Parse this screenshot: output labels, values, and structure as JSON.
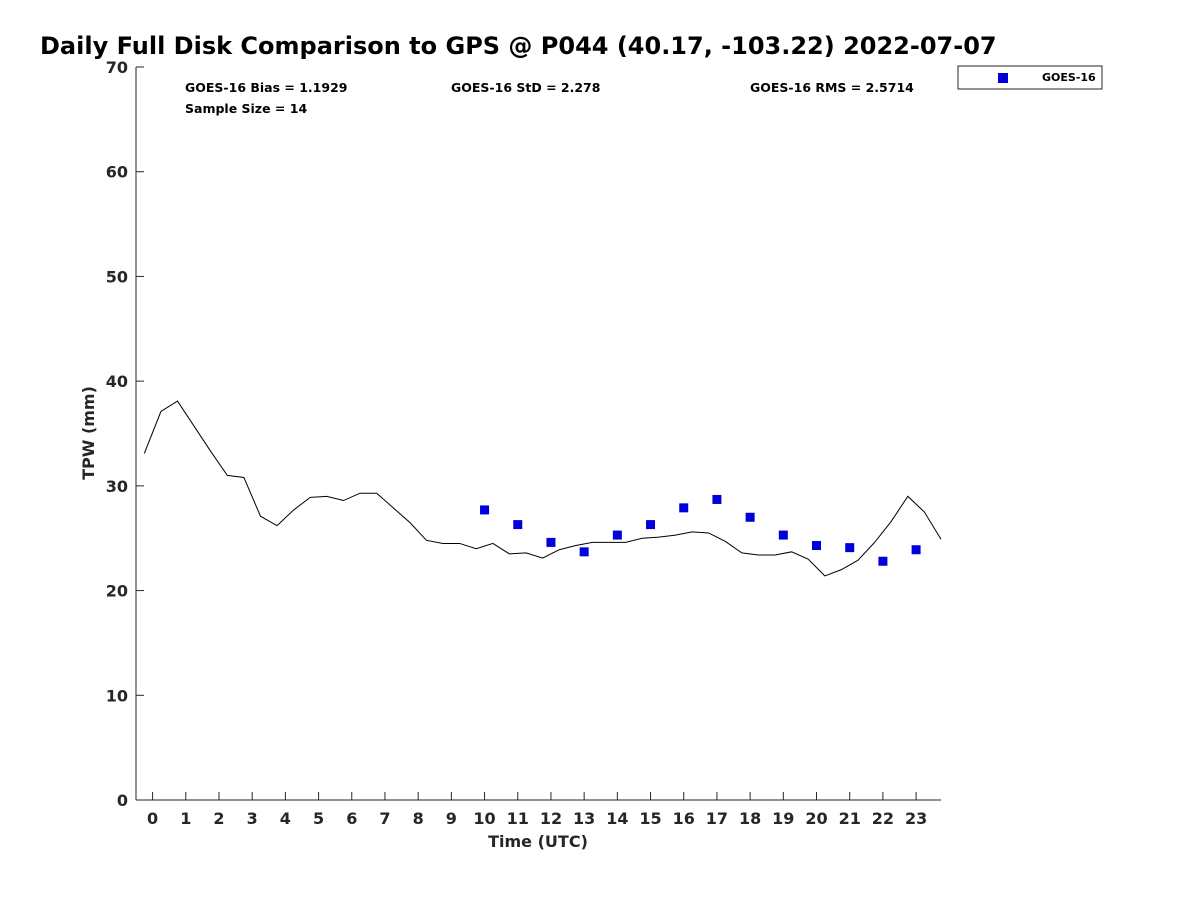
{
  "chart_data": {
    "type": "line",
    "title": "Daily Full Disk Comparison to GPS @ P044 (40.17, -103.22) 2022-07-07",
    "xlabel": "Time (UTC)",
    "ylabel": "TPW (mm)",
    "xlim": [
      -0.5,
      23.75
    ],
    "ylim": [
      0,
      70
    ],
    "xticks": [
      0,
      1,
      2,
      3,
      4,
      5,
      6,
      7,
      8,
      9,
      10,
      11,
      12,
      13,
      14,
      15,
      16,
      17,
      18,
      19,
      20,
      21,
      22,
      23
    ],
    "yticks": [
      0,
      10,
      20,
      30,
      40,
      50,
      60,
      70
    ],
    "grid": false,
    "legend_position": "outside-top-right",
    "stats": {
      "bias": "GOES-16 Bias = 1.1929",
      "std": "GOES-16 StD = 2.278",
      "rms": "GOES-16 RMS = 2.5714",
      "sample": "Sample Size = 14"
    },
    "series": [
      {
        "role": "gps",
        "type": "line",
        "color": "#000000",
        "x": [
          -0.25,
          0.25,
          0.75,
          1.25,
          1.75,
          2.25,
          2.75,
          3.25,
          3.75,
          4.25,
          4.75,
          5.25,
          5.75,
          6.25,
          6.75,
          7.25,
          7.75,
          8.25,
          8.75,
          9.25,
          9.75,
          10.25,
          10.75,
          11.25,
          11.75,
          12.25,
          12.75,
          13.25,
          13.75,
          14.25,
          14.75,
          15.25,
          15.75,
          16.25,
          16.75,
          17.25,
          17.75,
          18.25,
          18.75,
          19.25,
          19.75,
          20.25,
          20.75,
          21.25,
          21.75,
          22.25,
          22.75,
          23.25,
          23.75
        ],
        "y": [
          33.1,
          37.1,
          38.1,
          35.7,
          33.3,
          31.0,
          30.8,
          27.1,
          26.2,
          27.7,
          28.9,
          29.0,
          28.6,
          29.3,
          29.3,
          27.9,
          26.5,
          24.8,
          24.5,
          24.5,
          24.0,
          24.5,
          23.5,
          23.6,
          23.1,
          23.9,
          24.3,
          24.6,
          24.6,
          24.6,
          25.0,
          25.1,
          25.3,
          25.6,
          25.5,
          24.7,
          23.6,
          23.4,
          23.4,
          23.7,
          23.0,
          21.4,
          22.0,
          22.9,
          24.6,
          26.6,
          29.0,
          27.5,
          24.9
        ]
      },
      {
        "name": "GOES-16",
        "type": "scatter",
        "color": "#0000dd",
        "marker": "square",
        "x": [
          10,
          11,
          12,
          13,
          14,
          15,
          16,
          17,
          18,
          19,
          20,
          21,
          22,
          23
        ],
        "y": [
          27.7,
          26.3,
          24.6,
          23.7,
          25.3,
          26.3,
          27.9,
          28.7,
          27.0,
          25.3,
          24.3,
          24.1,
          22.8,
          23.9
        ]
      }
    ]
  }
}
